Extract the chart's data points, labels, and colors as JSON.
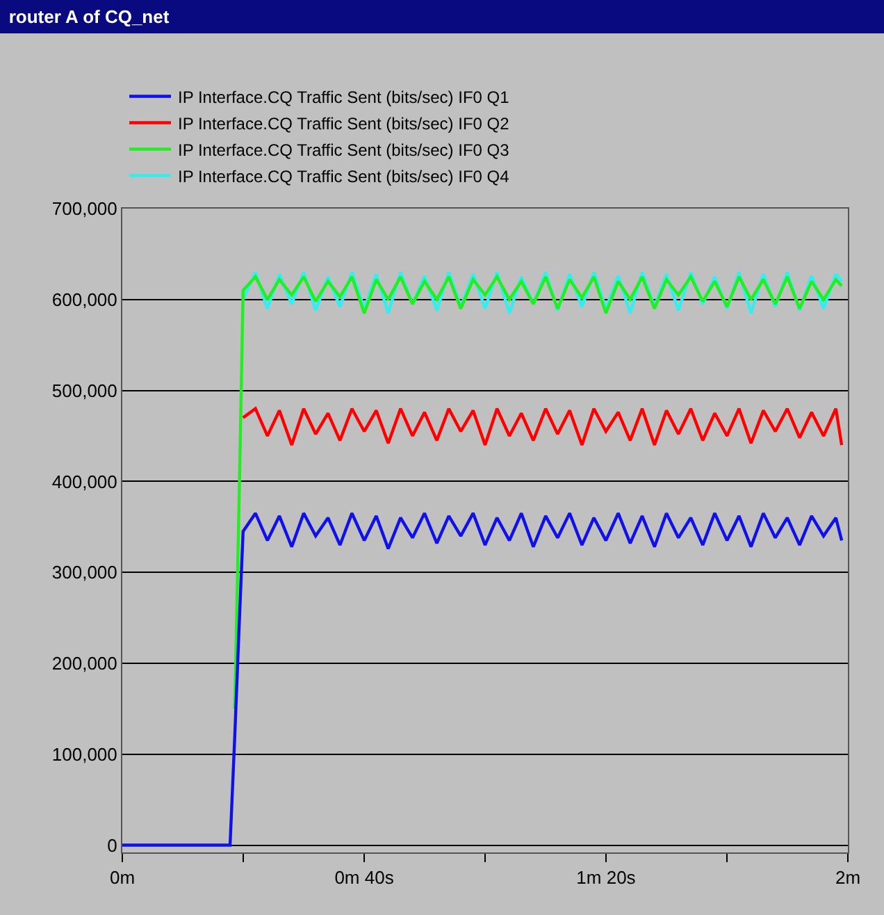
{
  "chart_data": {
    "type": "line",
    "title": "router A of CQ_net",
    "x": [
      0,
      0.297,
      0.31,
      0.323,
      0.333,
      0.367,
      0.4,
      0.433,
      0.467,
      0.5,
      0.533,
      0.567,
      0.6,
      0.633,
      0.667,
      0.7,
      0.733,
      0.767,
      0.8,
      0.833,
      0.867,
      0.9,
      0.933,
      0.967,
      1.0,
      1.033,
      1.067,
      1.1,
      1.133,
      1.167,
      1.2,
      1.233,
      1.267,
      1.3,
      1.333,
      1.367,
      1.4,
      1.433,
      1.467,
      1.5,
      1.533,
      1.567,
      1.6,
      1.633,
      1.667,
      1.7,
      1.733,
      1.767,
      1.8,
      1.833,
      1.867,
      1.9,
      1.933,
      1.967,
      1.983
    ],
    "series": [
      {
        "name": "IP Interface.CQ Traffic Sent (bits/sec) IF0 Q1",
        "color": "#1010e8",
        "values": [
          0,
          0,
          120000,
          250000,
          345000,
          365000,
          335000,
          362000,
          328000,
          365000,
          340000,
          360000,
          330000,
          365000,
          335000,
          362000,
          326000,
          360000,
          338000,
          365000,
          332000,
          362000,
          340000,
          365000,
          330000,
          360000,
          335000,
          365000,
          328000,
          362000,
          338000,
          365000,
          330000,
          360000,
          335000,
          365000,
          332000,
          362000,
          328000,
          365000,
          338000,
          360000,
          330000,
          365000,
          335000,
          362000,
          328000,
          365000,
          338000,
          360000,
          330000,
          362000,
          340000,
          360000,
          335000
        ]
      },
      {
        "name": "IP Interface.CQ Traffic Sent (bits/sec) IF0 Q2",
        "color": "#ff0000",
        "values": [
          null,
          null,
          null,
          null,
          470000,
          480000,
          450000,
          478000,
          440000,
          480000,
          452000,
          475000,
          445000,
          480000,
          455000,
          478000,
          442000,
          480000,
          450000,
          476000,
          445000,
          480000,
          455000,
          478000,
          440000,
          480000,
          450000,
          475000,
          445000,
          480000,
          452000,
          478000,
          440000,
          480000,
          455000,
          476000,
          445000,
          480000,
          440000,
          478000,
          452000,
          480000,
          445000,
          475000,
          450000,
          480000,
          442000,
          478000,
          455000,
          480000,
          448000,
          476000,
          450000,
          480000,
          440000
        ]
      },
      {
        "name": "IP Interface.CQ Traffic Sent (bits/sec) IF0 Q3",
        "color": "#22ee22",
        "values": [
          null,
          null,
          150000,
          400000,
          610000,
          625000,
          600000,
          622000,
          605000,
          625000,
          598000,
          620000,
          603000,
          625000,
          585000,
          622000,
          600000,
          625000,
          595000,
          620000,
          600000,
          625000,
          590000,
          622000,
          605000,
          625000,
          600000,
          620000,
          595000,
          625000,
          590000,
          622000,
          602000,
          625000,
          585000,
          620000,
          600000,
          625000,
          590000,
          622000,
          605000,
          625000,
          598000,
          620000,
          592000,
          625000,
          600000,
          622000,
          595000,
          625000,
          590000,
          620000,
          600000,
          622000,
          615000
        ]
      },
      {
        "name": "IP Interface.CQ Traffic Sent (bits/sec) IF0 Q4",
        "color": "#33eeee",
        "values": [
          null,
          null,
          null,
          null,
          600000,
          630000,
          590000,
          628000,
          595000,
          630000,
          588000,
          625000,
          592000,
          630000,
          590000,
          628000,
          585000,
          630000,
          595000,
          626000,
          588000,
          630000,
          592000,
          628000,
          590000,
          630000,
          585000,
          625000,
          595000,
          630000,
          588000,
          628000,
          592000,
          630000,
          590000,
          626000,
          585000,
          630000,
          592000,
          628000,
          588000,
          630000,
          595000,
          625000,
          590000,
          630000,
          585000,
          628000,
          592000,
          630000,
          588000,
          626000,
          590000,
          628000,
          620000
        ]
      }
    ],
    "xlim": [
      0,
      2
    ],
    "xticks": [
      {
        "value": 0,
        "label": "0m"
      },
      {
        "value": 0.3333,
        "label": null
      },
      {
        "value": 0.6667,
        "label": "0m 40s"
      },
      {
        "value": 1,
        "label": null
      },
      {
        "value": 1.3333,
        "label": "1m 20s"
      },
      {
        "value": 1.6667,
        "label": null
      },
      {
        "value": 2,
        "label": "2m"
      }
    ],
    "ylim": [
      -8000,
      700000
    ],
    "yticks": [
      0,
      {
        "value": 100000,
        "label": "100,000"
      },
      {
        "value": 200000,
        "label": "200,000"
      },
      {
        "value": 300000,
        "label": "300,000"
      },
      {
        "value": 400000,
        "label": "400,000"
      },
      {
        "value": 500000,
        "label": "500,000"
      },
      {
        "value": 600000,
        "label": "600,000"
      },
      {
        "value": 700000,
        "label": "700,000"
      }
    ],
    "grid": "y",
    "legend": "top left",
    "marker": "none",
    "line_style": "solid"
  }
}
